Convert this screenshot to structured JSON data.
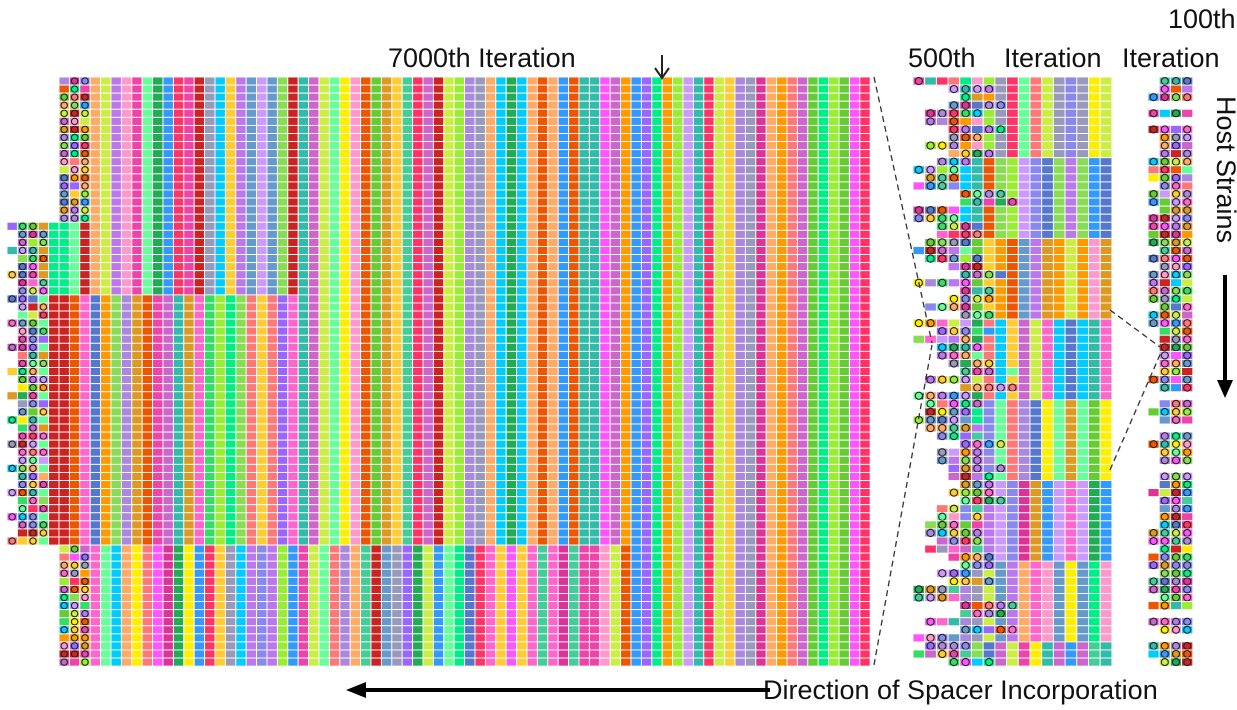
{
  "labels": {
    "iter_7000": "7000th  Iteration",
    "iter_500": "500th",
    "iter_500b": "Iteration",
    "iter_100_num": "100th",
    "iter_100_word": "Iteration",
    "host_strains": "Host Strains",
    "direction": "Direction of Spacer Incorporation"
  },
  "colors": {
    "palette": [
      "#ff9900",
      "#33dd66",
      "#ff66cc",
      "#00ccff",
      "#9966ff",
      "#ffee00",
      "#66ff99",
      "#ff3366",
      "#3399ff",
      "#cc99ff",
      "#99ee33",
      "#ff99cc",
      "#6699cc",
      "#ee5500",
      "#33bbaa",
      "#cc66cc",
      "#ffcc33",
      "#66cc33",
      "#aa88dd",
      "#ff7777",
      "#22aa55",
      "#dd3399",
      "#8888ee",
      "#00ee88",
      "#ffaa66",
      "#bb77ee",
      "#44cc99",
      "#ee44aa",
      "#ccee44",
      "#9999bb",
      "#cc2222",
      "#5577cc",
      "#88dd55",
      "#ff55ff",
      "#dd9922"
    ],
    "arrow": "#000000",
    "dashed": "#333333"
  }
}
